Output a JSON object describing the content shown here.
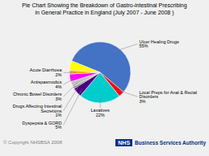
{
  "chart_data": {
    "type": "pie",
    "title": "Pie Chart Showing the Breakdown of Gastro-intestinal Prescribing\nin General Practice in England (July 2007 - June 2008 )",
    "categories": [
      "Ulcer Healing Drugs",
      "Local Preps for Anal & Rectal\nDisorders",
      "Laxatives",
      "Dyspepsia & GORD",
      "Drugs Affecting Intestinal\nSecretions",
      "Chronic Bowel Disorders",
      "Antispasmodics",
      "Acute Diarrhoea",
      null
    ],
    "values": [
      55,
      3,
      22,
      5,
      1,
      3,
      4,
      2,
      5
    ],
    "value_labels": [
      "55%",
      "3%",
      "22%",
      "5%",
      "1%",
      "3%",
      "4%",
      "2%",
      null
    ],
    "colors": [
      "#4472C4",
      "#FF0000",
      "#00CCCC",
      "#4B0082",
      "#808080",
      "#C0C0C0",
      "#FF00FF",
      "#FFA500",
      "#FFFF00"
    ],
    "data_labels": true,
    "annotations": [
      "© Copyright NHSBSA 2008",
      "NHS",
      "Business Services Authority"
    ]
  }
}
